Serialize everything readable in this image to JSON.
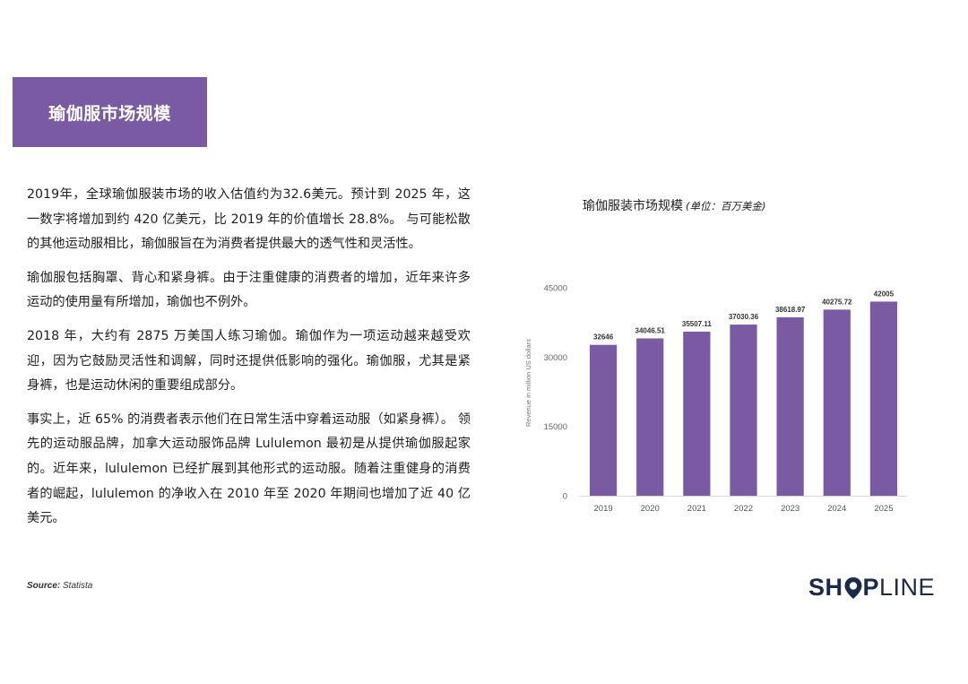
{
  "header": {
    "title": "瑜伽服市场规模"
  },
  "paragraphs": [
    "2019年，全球瑜伽服装市场的收入估值约为32.6美元。预计到 2025 年，这一数字将增加到约 420 亿美元，比 2019 年的价值增长 28.8%。 与可能松散的其他运动服相比，瑜伽服旨在为消费者提供最大的透气性和灵活性。",
    "瑜伽服包括胸罩、背心和紧身裤。由于注重健康的消费者的增加，近年来许多运动的使用量有所增加，瑜伽也不例外。",
    " 2018 年，大约有 2875 万美国人练习瑜伽。瑜伽作为一项运动越来越受欢迎，因为它鼓励灵活性和调解，同时还提供低影响的强化。瑜伽服，尤其是紧身裤，也是运动休闲的重要组成部分。",
    "事实上，近 65% 的消费者表示他们在日常生活中穿着运动服（如紧身裤）。 领先的运动服品牌，加拿大运动服饰品牌 Lululemon 最初是从提供瑜伽服起家的。近年来，lululemon 已经扩展到其他形式的运动服。随着注重健身的消费者的崛起，lululemon 的净收入在 2010 年至 2020 年期间也增加了近 40 亿美元。"
  ],
  "source": {
    "label": "Source:",
    "value": "Statista"
  },
  "logo": {
    "part1": "SH",
    "part2": "P",
    "part3": "LINE",
    "icon": "location-pin-icon"
  },
  "chart_data": {
    "type": "bar",
    "title": "瑜伽服装市场规模",
    "unit_note": "(单位：百万美金)",
    "ylabel": "Revenue in million US dollars",
    "categories": [
      "2019",
      "2020",
      "2021",
      "2022",
      "2023",
      "2024",
      "2025"
    ],
    "values": [
      32646,
      34046.51,
      35507.11,
      37030.36,
      38618.97,
      40275.72,
      42005
    ],
    "value_labels": [
      "32646",
      "34046.51",
      "35507.11",
      "37030.36",
      "38618.97",
      "40275.72",
      "42005"
    ],
    "yticks": [
      0,
      15000,
      30000,
      45000
    ],
    "ylim": [
      0,
      45000
    ],
    "grid": false,
    "bar_color": "#7a5ba3"
  }
}
